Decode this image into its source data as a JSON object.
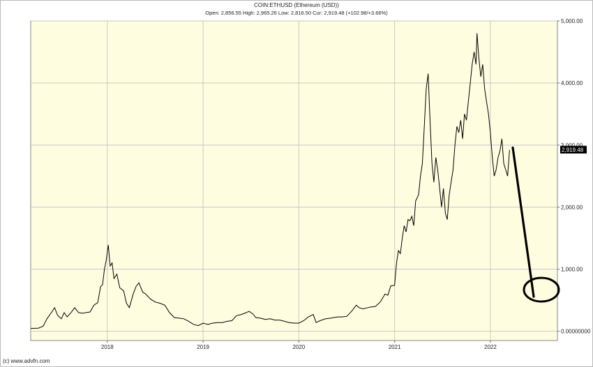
{
  "source_credit": "(c) www.advfn.com",
  "chart_data": {
    "type": "line",
    "title": "COIN:ETHUSD (Ethereum (USD))",
    "subtitle": "Open: 2,856.55 High: 2,965.26 Low: 2,816.50 Cur: 2,919.48 (+102.98/+3.66%)",
    "current_label": "2,919.48",
    "current_value": 2919.48,
    "y_ticks": [
      {
        "value": 0,
        "label": "0.00000000"
      },
      {
        "value": 1000,
        "label": "1,000.00"
      },
      {
        "value": 2000,
        "label": "2,000.00"
      },
      {
        "value": 3000,
        "label": "3,000.00"
      },
      {
        "value": 4000,
        "label": "4,000.00"
      },
      {
        "value": 5000,
        "label": "5,000.00"
      }
    ],
    "x_ticks": [
      {
        "value": 2018.0,
        "label": "2018"
      },
      {
        "value": 2019.0,
        "label": "2019"
      },
      {
        "value": 2020.0,
        "label": "2020"
      },
      {
        "value": 2021.0,
        "label": "2021"
      },
      {
        "value": 2022.0,
        "label": "2022"
      }
    ],
    "xlim": [
      2017.2,
      2022.7
    ],
    "ylim": [
      -150,
      5000
    ],
    "grid": true,
    "series": [
      {
        "points": [
          [
            2017.2,
            45
          ],
          [
            2017.28,
            50
          ],
          [
            2017.33,
            80
          ],
          [
            2017.37,
            200
          ],
          [
            2017.42,
            310
          ],
          [
            2017.45,
            380
          ],
          [
            2017.48,
            260
          ],
          [
            2017.52,
            200
          ],
          [
            2017.55,
            300
          ],
          [
            2017.58,
            230
          ],
          [
            2017.62,
            300
          ],
          [
            2017.66,
            380
          ],
          [
            2017.7,
            300
          ],
          [
            2017.74,
            290
          ],
          [
            2017.78,
            300
          ],
          [
            2017.82,
            310
          ],
          [
            2017.86,
            420
          ],
          [
            2017.9,
            460
          ],
          [
            2017.93,
            720
          ],
          [
            2017.95,
            750
          ],
          [
            2017.97,
            1000
          ],
          [
            2017.99,
            1150
          ],
          [
            2018.01,
            1390
          ],
          [
            2018.03,
            1050
          ],
          [
            2018.05,
            1100
          ],
          [
            2018.07,
            850
          ],
          [
            2018.1,
            920
          ],
          [
            2018.13,
            700
          ],
          [
            2018.17,
            650
          ],
          [
            2018.2,
            450
          ],
          [
            2018.23,
            380
          ],
          [
            2018.27,
            600
          ],
          [
            2018.3,
            720
          ],
          [
            2018.33,
            780
          ],
          [
            2018.37,
            630
          ],
          [
            2018.4,
            600
          ],
          [
            2018.45,
            520
          ],
          [
            2018.5,
            470
          ],
          [
            2018.55,
            450
          ],
          [
            2018.6,
            420
          ],
          [
            2018.65,
            300
          ],
          [
            2018.7,
            220
          ],
          [
            2018.75,
            210
          ],
          [
            2018.8,
            200
          ],
          [
            2018.85,
            160
          ],
          [
            2018.9,
            110
          ],
          [
            2018.95,
            90
          ],
          [
            2019.0,
            130
          ],
          [
            2019.05,
            110
          ],
          [
            2019.1,
            130
          ],
          [
            2019.15,
            140
          ],
          [
            2019.2,
            140
          ],
          [
            2019.25,
            160
          ],
          [
            2019.3,
            170
          ],
          [
            2019.35,
            250
          ],
          [
            2019.4,
            270
          ],
          [
            2019.45,
            300
          ],
          [
            2019.48,
            320
          ],
          [
            2019.52,
            280
          ],
          [
            2019.55,
            220
          ],
          [
            2019.6,
            210
          ],
          [
            2019.65,
            190
          ],
          [
            2019.7,
            200
          ],
          [
            2019.75,
            180
          ],
          [
            2019.8,
            180
          ],
          [
            2019.85,
            160
          ],
          [
            2019.9,
            140
          ],
          [
            2019.95,
            130
          ],
          [
            2020.0,
            130
          ],
          [
            2020.05,
            170
          ],
          [
            2020.1,
            230
          ],
          [
            2020.15,
            270
          ],
          [
            2020.18,
            140
          ],
          [
            2020.22,
            170
          ],
          [
            2020.28,
            200
          ],
          [
            2020.33,
            210
          ],
          [
            2020.4,
            230
          ],
          [
            2020.45,
            230
          ],
          [
            2020.5,
            240
          ],
          [
            2020.55,
            320
          ],
          [
            2020.6,
            420
          ],
          [
            2020.63,
            380
          ],
          [
            2020.67,
            360
          ],
          [
            2020.72,
            380
          ],
          [
            2020.75,
            390
          ],
          [
            2020.8,
            400
          ],
          [
            2020.85,
            470
          ],
          [
            2020.9,
            600
          ],
          [
            2020.93,
            580
          ],
          [
            2020.96,
            730
          ],
          [
            2021.0,
            740
          ],
          [
            2021.02,
            1100
          ],
          [
            2021.04,
            1300
          ],
          [
            2021.06,
            1250
          ],
          [
            2021.08,
            1500
          ],
          [
            2021.1,
            1700
          ],
          [
            2021.12,
            1600
          ],
          [
            2021.14,
            1800
          ],
          [
            2021.16,
            1780
          ],
          [
            2021.18,
            1850
          ],
          [
            2021.2,
            1700
          ],
          [
            2021.22,
            2100
          ],
          [
            2021.25,
            2200
          ],
          [
            2021.27,
            2500
          ],
          [
            2021.29,
            2700
          ],
          [
            2021.31,
            3300
          ],
          [
            2021.33,
            3900
          ],
          [
            2021.35,
            4150
          ],
          [
            2021.37,
            3400
          ],
          [
            2021.39,
            2700
          ],
          [
            2021.41,
            2400
          ],
          [
            2021.43,
            2800
          ],
          [
            2021.45,
            2600
          ],
          [
            2021.47,
            2300
          ],
          [
            2021.49,
            2000
          ],
          [
            2021.51,
            2300
          ],
          [
            2021.53,
            1900
          ],
          [
            2021.55,
            1800
          ],
          [
            2021.57,
            2200
          ],
          [
            2021.59,
            2400
          ],
          [
            2021.61,
            2600
          ],
          [
            2021.63,
            3000
          ],
          [
            2021.65,
            3300
          ],
          [
            2021.67,
            3200
          ],
          [
            2021.69,
            3400
          ],
          [
            2021.71,
            3100
          ],
          [
            2021.73,
            3500
          ],
          [
            2021.75,
            3400
          ],
          [
            2021.77,
            3700
          ],
          [
            2021.79,
            4000
          ],
          [
            2021.81,
            4300
          ],
          [
            2021.83,
            4500
          ],
          [
            2021.85,
            4300
          ],
          [
            2021.86,
            4800
          ],
          [
            2021.88,
            4400
          ],
          [
            2021.9,
            4100
          ],
          [
            2021.92,
            4300
          ],
          [
            2021.94,
            3900
          ],
          [
            2021.96,
            3700
          ],
          [
            2021.98,
            3500
          ],
          [
            2022.0,
            3200
          ],
          [
            2022.02,
            2800
          ],
          [
            2022.04,
            2500
          ],
          [
            2022.06,
            2600
          ],
          [
            2022.08,
            2800
          ],
          [
            2022.1,
            2900
          ],
          [
            2022.12,
            3100
          ],
          [
            2022.14,
            2700
          ],
          [
            2022.16,
            2600
          ],
          [
            2022.18,
            2500
          ],
          [
            2022.2,
            2919.48
          ]
        ]
      }
    ]
  }
}
